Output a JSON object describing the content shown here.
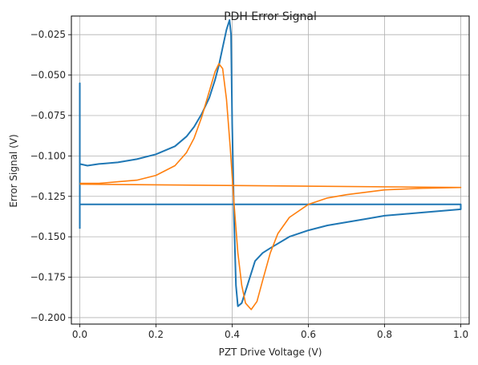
{
  "chart_data": {
    "type": "line",
    "title": "PDH Error Signal",
    "xlabel": "PZT Drive Voltage (V)",
    "ylabel": "Error Signal (V)",
    "xlim": [
      -0.022,
      1.022
    ],
    "ylim": [
      -0.204,
      -0.0135
    ],
    "xticks": [
      0.0,
      0.2,
      0.4,
      0.6,
      0.8,
      1.0
    ],
    "xtick_labels": [
      "0.0",
      "0.2",
      "0.4",
      "0.6",
      "0.8",
      "1.0"
    ],
    "yticks": [
      -0.2,
      -0.175,
      -0.15,
      -0.125,
      -0.1,
      -0.075,
      -0.05,
      -0.025
    ],
    "ytick_labels": [
      "−0.200",
      "−0.175",
      "−0.150",
      "−0.125",
      "−0.100",
      "−0.075",
      "−0.050",
      "−0.025"
    ],
    "grid": true,
    "series": [
      {
        "color": "#1f77b4",
        "points": [
          [
            0.0,
            -0.145
          ],
          [
            0.0,
            -0.055
          ],
          [
            0.0,
            -0.105
          ],
          [
            0.02,
            -0.106
          ],
          [
            0.05,
            -0.105
          ],
          [
            0.1,
            -0.104
          ],
          [
            0.15,
            -0.102
          ],
          [
            0.2,
            -0.099
          ],
          [
            0.25,
            -0.094
          ],
          [
            0.28,
            -0.088
          ],
          [
            0.3,
            -0.082
          ],
          [
            0.32,
            -0.074
          ],
          [
            0.34,
            -0.064
          ],
          [
            0.355,
            -0.053
          ],
          [
            0.365,
            -0.044
          ],
          [
            0.375,
            -0.033
          ],
          [
            0.385,
            -0.022
          ],
          [
            0.393,
            -0.016
          ],
          [
            0.397,
            -0.025
          ],
          [
            0.4,
            -0.08
          ],
          [
            0.405,
            -0.14
          ],
          [
            0.41,
            -0.18
          ],
          [
            0.415,
            -0.193
          ],
          [
            0.425,
            -0.191
          ],
          [
            0.44,
            -0.18
          ],
          [
            0.46,
            -0.165
          ],
          [
            0.48,
            -0.16
          ],
          [
            0.5,
            -0.157
          ],
          [
            0.55,
            -0.15
          ],
          [
            0.6,
            -0.146
          ],
          [
            0.65,
            -0.143
          ],
          [
            0.7,
            -0.141
          ],
          [
            0.75,
            -0.139
          ],
          [
            0.8,
            -0.137
          ],
          [
            0.85,
            -0.136
          ],
          [
            0.9,
            -0.135
          ],
          [
            0.95,
            -0.134
          ],
          [
            1.0,
            -0.133
          ],
          [
            1.0,
            -0.13
          ],
          [
            0.0,
            -0.13
          ]
        ]
      },
      {
        "color": "#ff7f0e",
        "points": [
          [
            0.0,
            -0.117
          ],
          [
            0.05,
            -0.117
          ],
          [
            0.1,
            -0.116
          ],
          [
            0.15,
            -0.115
          ],
          [
            0.2,
            -0.112
          ],
          [
            0.25,
            -0.106
          ],
          [
            0.28,
            -0.098
          ],
          [
            0.3,
            -0.089
          ],
          [
            0.32,
            -0.076
          ],
          [
            0.34,
            -0.06
          ],
          [
            0.355,
            -0.048
          ],
          [
            0.365,
            -0.043
          ],
          [
            0.375,
            -0.046
          ],
          [
            0.385,
            -0.065
          ],
          [
            0.395,
            -0.095
          ],
          [
            0.405,
            -0.13
          ],
          [
            0.415,
            -0.16
          ],
          [
            0.425,
            -0.18
          ],
          [
            0.435,
            -0.191
          ],
          [
            0.45,
            -0.195
          ],
          [
            0.465,
            -0.19
          ],
          [
            0.48,
            -0.177
          ],
          [
            0.5,
            -0.16
          ],
          [
            0.52,
            -0.148
          ],
          [
            0.55,
            -0.138
          ],
          [
            0.6,
            -0.13
          ],
          [
            0.65,
            -0.126
          ],
          [
            0.7,
            -0.124
          ],
          [
            0.8,
            -0.121
          ],
          [
            0.9,
            -0.12
          ],
          [
            1.0,
            -0.1195
          ],
          [
            0.0,
            -0.1175
          ]
        ]
      }
    ]
  }
}
